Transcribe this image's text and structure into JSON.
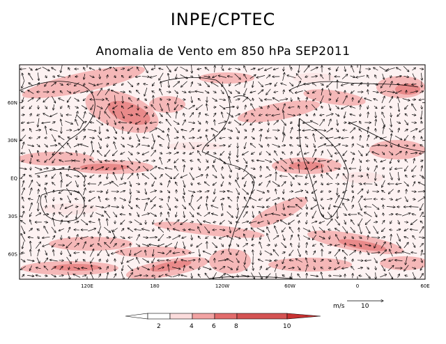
{
  "header": {
    "title": "INPE/CPTEC",
    "subtitle": "Anomalia de Vento em 850 hPa SEP2011"
  },
  "axes": {
    "lat_labels": [
      "60N",
      "30N",
      "EQ",
      "30S",
      "60S"
    ],
    "lat_values": [
      60,
      30,
      0,
      -30,
      -60
    ],
    "lon_labels": [
      "120E",
      "180",
      "120W",
      "60W",
      "0",
      "60E"
    ],
    "lon_values": [
      120,
      180,
      240,
      300,
      360,
      420
    ],
    "lon_range": [
      60,
      420
    ],
    "lat_range": [
      -80,
      90
    ]
  },
  "reference_vector": {
    "unit": "m/s",
    "value": "10"
  },
  "legend": {
    "labels": [
      "2",
      "4",
      "6",
      "8",
      "10"
    ],
    "colors": [
      "#ffffff",
      "#fbdcdc",
      "#f2a3a3",
      "#e26c6c",
      "#c83232"
    ]
  },
  "shading_colors": [
    "#fbe6e6",
    "#f5b8b8",
    "#e98a8a",
    "#d45353"
  ]
}
